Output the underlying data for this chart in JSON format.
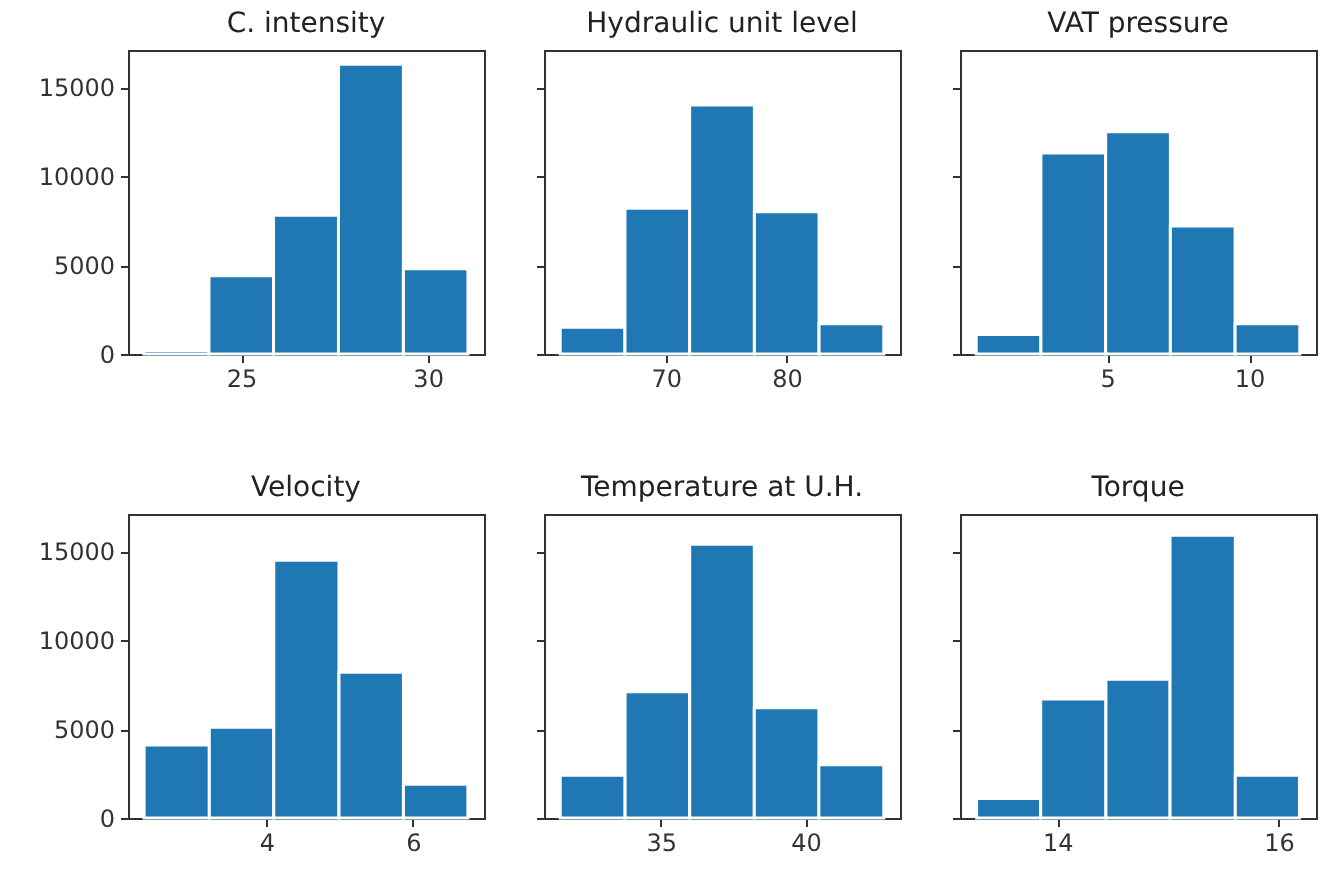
{
  "chart_data": [
    {
      "type": "histogram",
      "title": "C. intensity",
      "bins": [
        22.4,
        24.14,
        25.87,
        27.61,
        29.35,
        31.08
      ],
      "values": [
        200,
        4400,
        7800,
        16300,
        4800
      ],
      "color": "#1f77b4",
      "xlim": [
        21.97,
        31.51
      ],
      "xticks": [
        25,
        30
      ],
      "ylim": [
        0,
        17100
      ],
      "yticks": [
        0,
        5000,
        10000,
        15000
      ]
    },
    {
      "type": "histogram",
      "title": "Hydraulic unit level",
      "bins": [
        61.27,
        66.63,
        71.98,
        77.34,
        82.69,
        88.05
      ],
      "values": [
        1500,
        8200,
        14000,
        8000,
        1700
      ],
      "color": "#1f77b4",
      "xlim": [
        59.93,
        89.39
      ],
      "xticks": [
        70,
        80
      ],
      "ylim": [
        0,
        17100
      ],
      "yticks": [
        0,
        5000,
        10000,
        15000
      ],
      "tick_labels": "x"
    },
    {
      "type": "histogram",
      "title": "VAT pressure",
      "bins": [
        0.39,
        2.67,
        4.95,
        7.23,
        9.51,
        11.79
      ],
      "values": [
        1100,
        11300,
        12500,
        7200,
        1700
      ],
      "color": "#1f77b4",
      "xlim": [
        -0.18,
        12.36
      ],
      "xticks": [
        5,
        10
      ],
      "ylim": [
        0,
        17100
      ],
      "yticks": [
        0,
        5000,
        10000,
        15000
      ],
      "tick_labels": "x"
    },
    {
      "type": "histogram",
      "title": "Velocity",
      "bins": [
        2.33,
        3.22,
        4.1,
        4.99,
        5.87,
        6.75
      ],
      "values": [
        4100,
        5100,
        14500,
        8200,
        1900
      ],
      "color": "#1f77b4",
      "xlim": [
        2.11,
        6.97
      ],
      "xticks": [
        4,
        6
      ],
      "ylim": [
        0,
        17100
      ],
      "yticks": [
        0,
        5000,
        10000,
        15000
      ]
    },
    {
      "type": "histogram",
      "title": "Temperature at U.H.",
      "bins": [
        31.53,
        33.77,
        36.0,
        38.23,
        40.46,
        42.7
      ],
      "values": [
        2400,
        7100,
        15400,
        6200,
        3000
      ],
      "color": "#1f77b4",
      "xlim": [
        30.97,
        43.26
      ],
      "xticks": [
        35,
        40
      ],
      "ylim": [
        0,
        17100
      ],
      "yticks": [
        0,
        5000,
        10000,
        15000
      ],
      "tick_labels": "x"
    },
    {
      "type": "histogram",
      "title": "Torque",
      "bins": [
        13.27,
        13.85,
        14.44,
        15.02,
        15.61,
        16.19
      ],
      "values": [
        1100,
        6700,
        7800,
        15900,
        2400
      ],
      "color": "#1f77b4",
      "xlim": [
        13.12,
        16.34
      ],
      "xticks": [
        14,
        16
      ],
      "ylim": [
        0,
        17100
      ],
      "yticks": [
        0,
        5000,
        10000,
        15000
      ],
      "tick_labels": "x"
    }
  ]
}
